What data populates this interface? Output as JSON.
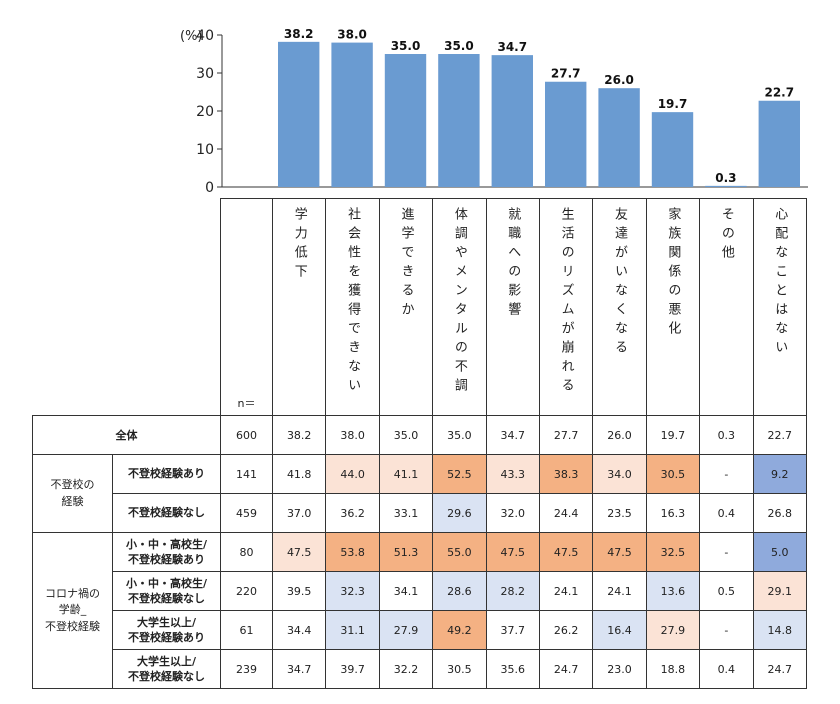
{
  "chart_data": {
    "type": "bar",
    "y_unit": "(%)",
    "ylim": [
      0,
      40
    ],
    "yticks": [
      0,
      10,
      20,
      30,
      40
    ],
    "categories": [
      "学力低下",
      "社会性を獲得できない",
      "進学できるか",
      "体調やメンタルの不調",
      "就職への影響",
      "生活のリズムが崩れる",
      "友達がいなくなる",
      "家族関係の悪化",
      "その他",
      "心配なことはない"
    ],
    "values": [
      38.2,
      38.0,
      35.0,
      35.0,
      34.7,
      27.7,
      26.0,
      19.7,
      0.3,
      22.7
    ],
    "value_labels": [
      "38.2",
      "38.0",
      "35.0",
      "35.0",
      "34.7",
      "27.7",
      "26.0",
      "19.7",
      "0.3",
      "22.7"
    ],
    "bar_color": "#6a9bd1"
  },
  "table": {
    "n_header": "n＝",
    "total_label": "全体",
    "groups": [
      {
        "label_lines": [
          "不登校の",
          "経験"
        ],
        "rows": [
          {
            "label_lines": [
              "不登校経験あり"
            ],
            "n": "141",
            "cells": [
              "41.8",
              "44.0",
              "41.1",
              "52.5",
              "43.3",
              "38.3",
              "34.0",
              "30.5",
              "-",
              "9.2"
            ],
            "shades": [
              "",
              "#fbe3d6",
              "#fbe3d6",
              "#f4b183",
              "#fbe3d6",
              "#f4b183",
              "#fbe3d6",
              "#f4b183",
              "",
              "#8faadc"
            ]
          },
          {
            "label_lines": [
              "不登校経験なし"
            ],
            "n": "459",
            "cells": [
              "37.0",
              "36.2",
              "33.1",
              "29.6",
              "32.0",
              "24.4",
              "23.5",
              "16.3",
              "0.4",
              "26.8"
            ],
            "shades": [
              "",
              "",
              "",
              "#dae3f3",
              "",
              "",
              "",
              "",
              "",
              ""
            ]
          }
        ]
      },
      {
        "label_lines": [
          "コロナ禍の",
          "学齢_",
          "不登校経験"
        ],
        "rows": [
          {
            "label_lines": [
              "小・中・高校生/",
              "不登校経験あり"
            ],
            "n": "80",
            "cells": [
              "47.5",
              "53.8",
              "51.3",
              "55.0",
              "47.5",
              "47.5",
              "47.5",
              "32.5",
              "-",
              "5.0"
            ],
            "shades": [
              "#fbe3d6",
              "#f4b183",
              "#f4b183",
              "#f4b183",
              "#f4b183",
              "#f4b183",
              "#f4b183",
              "#f4b183",
              "",
              "#8faadc"
            ]
          },
          {
            "label_lines": [
              "小・中・高校生/",
              "不登校経験なし"
            ],
            "n": "220",
            "cells": [
              "39.5",
              "32.3",
              "34.1",
              "28.6",
              "28.2",
              "24.1",
              "24.1",
              "13.6",
              "0.5",
              "29.1"
            ],
            "shades": [
              "",
              "#dae3f3",
              "",
              "#dae3f3",
              "#dae3f3",
              "",
              "",
              "#dae3f3",
              "",
              "#fbe3d6"
            ]
          },
          {
            "label_lines": [
              "大学生以上/",
              "不登校経験あり"
            ],
            "n": "61",
            "cells": [
              "34.4",
              "31.1",
              "27.9",
              "49.2",
              "37.7",
              "26.2",
              "16.4",
              "27.9",
              "-",
              "14.8"
            ],
            "shades": [
              "",
              "#dae3f3",
              "#dae3f3",
              "#f4b183",
              "",
              "",
              "#dae3f3",
              "#fbe3d6",
              "",
              "#dae3f3"
            ]
          },
          {
            "label_lines": [
              "大学生以上/",
              "不登校経験なし"
            ],
            "n": "239",
            "cells": [
              "34.7",
              "39.7",
              "32.2",
              "30.5",
              "35.6",
              "24.7",
              "23.0",
              "18.8",
              "0.4",
              "24.7"
            ],
            "shades": [
              "",
              "",
              "",
              "",
              "",
              "",
              "",
              "",
              "",
              ""
            ]
          }
        ]
      }
    ],
    "total_row": {
      "n": "600",
      "cells": [
        "38.2",
        "38.0",
        "35.0",
        "35.0",
        "34.7",
        "27.7",
        "26.0",
        "19.7",
        "0.3",
        "22.7"
      ]
    }
  }
}
